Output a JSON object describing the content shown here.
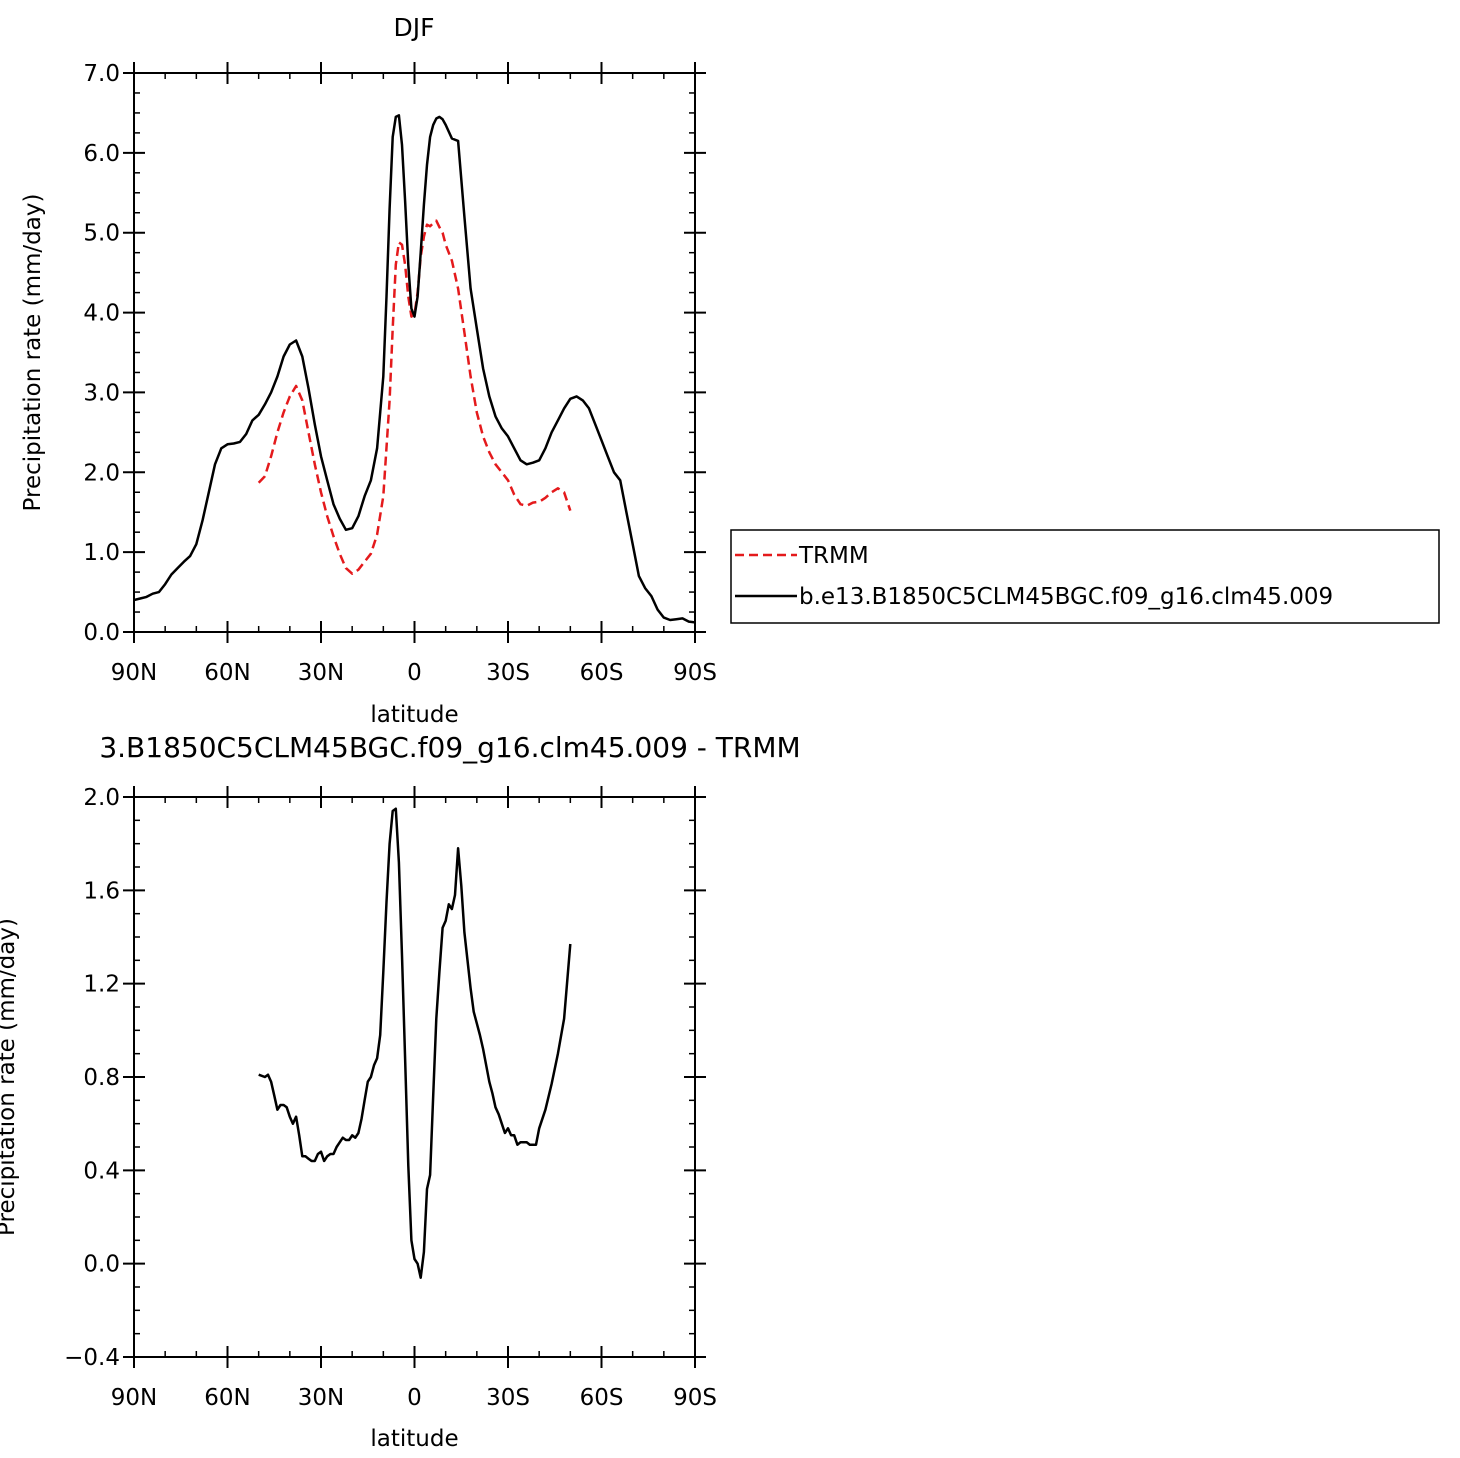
{
  "chart_data": [
    {
      "type": "line",
      "title": "DJF",
      "xlabel": "latitude",
      "ylabel": "Precipitation rate (mm/day)",
      "x_axis": "latitude from 90N (-90) to 90S (+90)",
      "xlim": [
        -90,
        90
      ],
      "ylim": [
        0,
        7
      ],
      "x_ticks": [
        -90,
        -60,
        -30,
        0,
        30,
        60,
        90
      ],
      "x_tick_labels": [
        "90N",
        "60N",
        "30N",
        "0",
        "30S",
        "60S",
        "90S"
      ],
      "y_ticks": [
        0,
        1,
        2,
        3,
        4,
        5,
        6,
        7
      ],
      "y_tick_labels": [
        "0.0",
        "1.0",
        "2.0",
        "3.0",
        "4.0",
        "5.0",
        "6.0",
        "7.0"
      ],
      "legend": {
        "placement": "right",
        "entries": [
          "TRMM",
          "b.e13.B1850C5CLM45BGC.f09_g16.clm45.009"
        ]
      },
      "series": [
        {
          "name": "TRMM",
          "color": "#e41a1c",
          "dash": "dashed",
          "points": [
            [
              -50,
              1.87
            ],
            [
              -48,
              1.95
            ],
            [
              -46,
              2.2
            ],
            [
              -44,
              2.5
            ],
            [
              -42,
              2.75
            ],
            [
              -40,
              2.95
            ],
            [
              -38,
              3.08
            ],
            [
              -36,
              2.9
            ],
            [
              -34,
              2.5
            ],
            [
              -32,
              2.1
            ],
            [
              -30,
              1.75
            ],
            [
              -28,
              1.45
            ],
            [
              -26,
              1.2
            ],
            [
              -24,
              0.98
            ],
            [
              -22,
              0.8
            ],
            [
              -20,
              0.73
            ],
            [
              -18,
              0.78
            ],
            [
              -16,
              0.88
            ],
            [
              -14,
              0.98
            ],
            [
              -12,
              1.22
            ],
            [
              -10,
              1.7
            ],
            [
              -8,
              2.9
            ],
            [
              -7,
              3.8
            ],
            [
              -6,
              4.6
            ],
            [
              -5,
              4.88
            ],
            [
              -4,
              4.85
            ],
            [
              -3,
              4.6
            ],
            [
              -2,
              4.2
            ],
            [
              -1,
              3.95
            ],
            [
              0,
              3.98
            ],
            [
              1,
              4.25
            ],
            [
              2,
              4.7
            ],
            [
              3,
              4.95
            ],
            [
              4,
              5.1
            ],
            [
              5,
              5.08
            ],
            [
              6,
              5.12
            ],
            [
              7,
              5.15
            ],
            [
              8,
              5.07
            ],
            [
              9,
              5.0
            ],
            [
              10,
              4.85
            ],
            [
              12,
              4.65
            ],
            [
              14,
              4.3
            ],
            [
              16,
              3.75
            ],
            [
              18,
              3.2
            ],
            [
              20,
              2.75
            ],
            [
              22,
              2.45
            ],
            [
              24,
              2.25
            ],
            [
              26,
              2.1
            ],
            [
              28,
              2.0
            ],
            [
              30,
              1.9
            ],
            [
              32,
              1.72
            ],
            [
              34,
              1.6
            ],
            [
              36,
              1.58
            ],
            [
              38,
              1.62
            ],
            [
              40,
              1.63
            ],
            [
              42,
              1.68
            ],
            [
              44,
              1.75
            ],
            [
              46,
              1.8
            ],
            [
              48,
              1.75
            ],
            [
              50,
              1.52
            ]
          ]
        },
        {
          "name": "b.e13.B1850C5CLM45BGC.f09_g16.clm45.009",
          "color": "#000000",
          "dash": "solid",
          "points": [
            [
              -90,
              0.4
            ],
            [
              -88,
              0.42
            ],
            [
              -86,
              0.44
            ],
            [
              -84,
              0.48
            ],
            [
              -82,
              0.5
            ],
            [
              -80,
              0.6
            ],
            [
              -78,
              0.72
            ],
            [
              -76,
              0.8
            ],
            [
              -74,
              0.88
            ],
            [
              -72,
              0.95
            ],
            [
              -70,
              1.1
            ],
            [
              -68,
              1.4
            ],
            [
              -66,
              1.75
            ],
            [
              -64,
              2.1
            ],
            [
              -62,
              2.3
            ],
            [
              -60,
              2.35
            ],
            [
              -58,
              2.36
            ],
            [
              -56,
              2.38
            ],
            [
              -54,
              2.48
            ],
            [
              -52,
              2.65
            ],
            [
              -50,
              2.72
            ],
            [
              -48,
              2.85
            ],
            [
              -46,
              3.0
            ],
            [
              -44,
              3.2
            ],
            [
              -42,
              3.45
            ],
            [
              -40,
              3.6
            ],
            [
              -38,
              3.65
            ],
            [
              -36,
              3.45
            ],
            [
              -34,
              3.05
            ],
            [
              -32,
              2.6
            ],
            [
              -30,
              2.2
            ],
            [
              -28,
              1.9
            ],
            [
              -26,
              1.6
            ],
            [
              -24,
              1.42
            ],
            [
              -22,
              1.28
            ],
            [
              -20,
              1.3
            ],
            [
              -18,
              1.45
            ],
            [
              -16,
              1.7
            ],
            [
              -14,
              1.9
            ],
            [
              -12,
              2.3
            ],
            [
              -10,
              3.2
            ],
            [
              -9,
              4.2
            ],
            [
              -8,
              5.3
            ],
            [
              -7,
              6.2
            ],
            [
              -6,
              6.45
            ],
            [
              -5,
              6.47
            ],
            [
              -4,
              6.1
            ],
            [
              -3,
              5.4
            ],
            [
              -2,
              4.6
            ],
            [
              -1,
              4.05
            ],
            [
              0,
              3.95
            ],
            [
              1,
              4.2
            ],
            [
              2,
              4.75
            ],
            [
              3,
              5.35
            ],
            [
              4,
              5.85
            ],
            [
              5,
              6.2
            ],
            [
              6,
              6.35
            ],
            [
              7,
              6.43
            ],
            [
              8,
              6.45
            ],
            [
              9,
              6.42
            ],
            [
              10,
              6.35
            ],
            [
              12,
              6.18
            ],
            [
              14,
              6.15
            ],
            [
              16,
              5.2
            ],
            [
              18,
              4.3
            ],
            [
              20,
              3.8
            ],
            [
              22,
              3.3
            ],
            [
              24,
              2.95
            ],
            [
              26,
              2.7
            ],
            [
              28,
              2.55
            ],
            [
              30,
              2.45
            ],
            [
              32,
              2.3
            ],
            [
              34,
              2.15
            ],
            [
              36,
              2.1
            ],
            [
              38,
              2.12
            ],
            [
              40,
              2.15
            ],
            [
              42,
              2.3
            ],
            [
              44,
              2.5
            ],
            [
              46,
              2.65
            ],
            [
              48,
              2.8
            ],
            [
              50,
              2.92
            ],
            [
              52,
              2.95
            ],
            [
              54,
              2.9
            ],
            [
              56,
              2.8
            ],
            [
              58,
              2.6
            ],
            [
              60,
              2.4
            ],
            [
              62,
              2.2
            ],
            [
              64,
              2.0
            ],
            [
              66,
              1.9
            ],
            [
              68,
              1.5
            ],
            [
              70,
              1.1
            ],
            [
              72,
              0.7
            ],
            [
              74,
              0.55
            ],
            [
              76,
              0.45
            ],
            [
              78,
              0.28
            ],
            [
              80,
              0.18
            ],
            [
              82,
              0.15
            ],
            [
              84,
              0.16
            ],
            [
              86,
              0.17
            ],
            [
              88,
              0.13
            ],
            [
              90,
              0.12
            ]
          ]
        }
      ]
    },
    {
      "type": "line",
      "title": "3.B1850C5CLM45BGC.f09_g16.clm45.009 - TRMM",
      "xlabel": "latitude",
      "ylabel": "Precipitation rate (mm/day)",
      "x_axis": "latitude from 90N (-90) to 90S (+90)",
      "xlim": [
        -90,
        90
      ],
      "ylim": [
        -0.4,
        2.0
      ],
      "x_ticks": [
        -90,
        -60,
        -30,
        0,
        30,
        60,
        90
      ],
      "x_tick_labels": [
        "90N",
        "60N",
        "30N",
        "0",
        "30S",
        "60S",
        "90S"
      ],
      "y_ticks": [
        -0.4,
        0.0,
        0.4,
        0.8,
        1.2,
        1.6,
        2.0
      ],
      "y_tick_labels": [
        "−0.4",
        "0.0",
        "0.4",
        "0.8",
        "1.2",
        "1.6",
        "2.0"
      ],
      "series": [
        {
          "color": "#000000",
          "dash": "solid",
          "points": [
            [
              -50,
              0.81
            ],
            [
              -48,
              0.8
            ],
            [
              -47,
              0.81
            ],
            [
              -46,
              0.78
            ],
            [
              -45,
              0.72
            ],
            [
              -44,
              0.66
            ],
            [
              -43,
              0.68
            ],
            [
              -42,
              0.68
            ],
            [
              -41,
              0.67
            ],
            [
              -40,
              0.63
            ],
            [
              -39,
              0.6
            ],
            [
              -38,
              0.63
            ],
            [
              -37,
              0.55
            ],
            [
              -36,
              0.46
            ],
            [
              -35,
              0.46
            ],
            [
              -34,
              0.45
            ],
            [
              -33,
              0.44
            ],
            [
              -32,
              0.44
            ],
            [
              -31,
              0.47
            ],
            [
              -30,
              0.48
            ],
            [
              -29,
              0.44
            ],
            [
              -28,
              0.46
            ],
            [
              -27,
              0.47
            ],
            [
              -26,
              0.47
            ],
            [
              -25,
              0.5
            ],
            [
              -24,
              0.52
            ],
            [
              -23,
              0.54
            ],
            [
              -22,
              0.53
            ],
            [
              -21,
              0.53
            ],
            [
              -20,
              0.55
            ],
            [
              -19,
              0.54
            ],
            [
              -18,
              0.56
            ],
            [
              -17,
              0.62
            ],
            [
              -16,
              0.7
            ],
            [
              -15,
              0.78
            ],
            [
              -14,
              0.8
            ],
            [
              -13,
              0.85
            ],
            [
              -12,
              0.88
            ],
            [
              -11,
              0.98
            ],
            [
              -10,
              1.25
            ],
            [
              -9,
              1.55
            ],
            [
              -8,
              1.8
            ],
            [
              -7,
              1.94
            ],
            [
              -6,
              1.95
            ],
            [
              -5,
              1.72
            ],
            [
              -4,
              1.32
            ],
            [
              -3,
              0.88
            ],
            [
              -2,
              0.42
            ],
            [
              -1,
              0.1
            ],
            [
              0,
              0.02
            ],
            [
              1,
              0.0
            ],
            [
              2,
              -0.06
            ],
            [
              3,
              0.05
            ],
            [
              4,
              0.32
            ],
            [
              5,
              0.38
            ],
            [
              6,
              0.72
            ],
            [
              7,
              1.05
            ],
            [
              8,
              1.25
            ],
            [
              9,
              1.44
            ],
            [
              10,
              1.47
            ],
            [
              11,
              1.54
            ],
            [
              12,
              1.52
            ],
            [
              13,
              1.58
            ],
            [
              14,
              1.78
            ],
            [
              15,
              1.62
            ],
            [
              16,
              1.42
            ],
            [
              17,
              1.3
            ],
            [
              18,
              1.18
            ],
            [
              19,
              1.08
            ],
            [
              20,
              1.03
            ],
            [
              21,
              0.98
            ],
            [
              22,
              0.92
            ],
            [
              23,
              0.85
            ],
            [
              24,
              0.78
            ],
            [
              25,
              0.73
            ],
            [
              26,
              0.67
            ],
            [
              27,
              0.64
            ],
            [
              28,
              0.6
            ],
            [
              29,
              0.56
            ],
            [
              30,
              0.58
            ],
            [
              31,
              0.55
            ],
            [
              32,
              0.55
            ],
            [
              33,
              0.51
            ],
            [
              34,
              0.52
            ],
            [
              35,
              0.52
            ],
            [
              36,
              0.52
            ],
            [
              37,
              0.51
            ],
            [
              38,
              0.51
            ],
            [
              39,
              0.51
            ],
            [
              40,
              0.58
            ],
            [
              42,
              0.66
            ],
            [
              44,
              0.77
            ],
            [
              46,
              0.9
            ],
            [
              48,
              1.05
            ],
            [
              50,
              1.37
            ]
          ]
        }
      ]
    }
  ]
}
